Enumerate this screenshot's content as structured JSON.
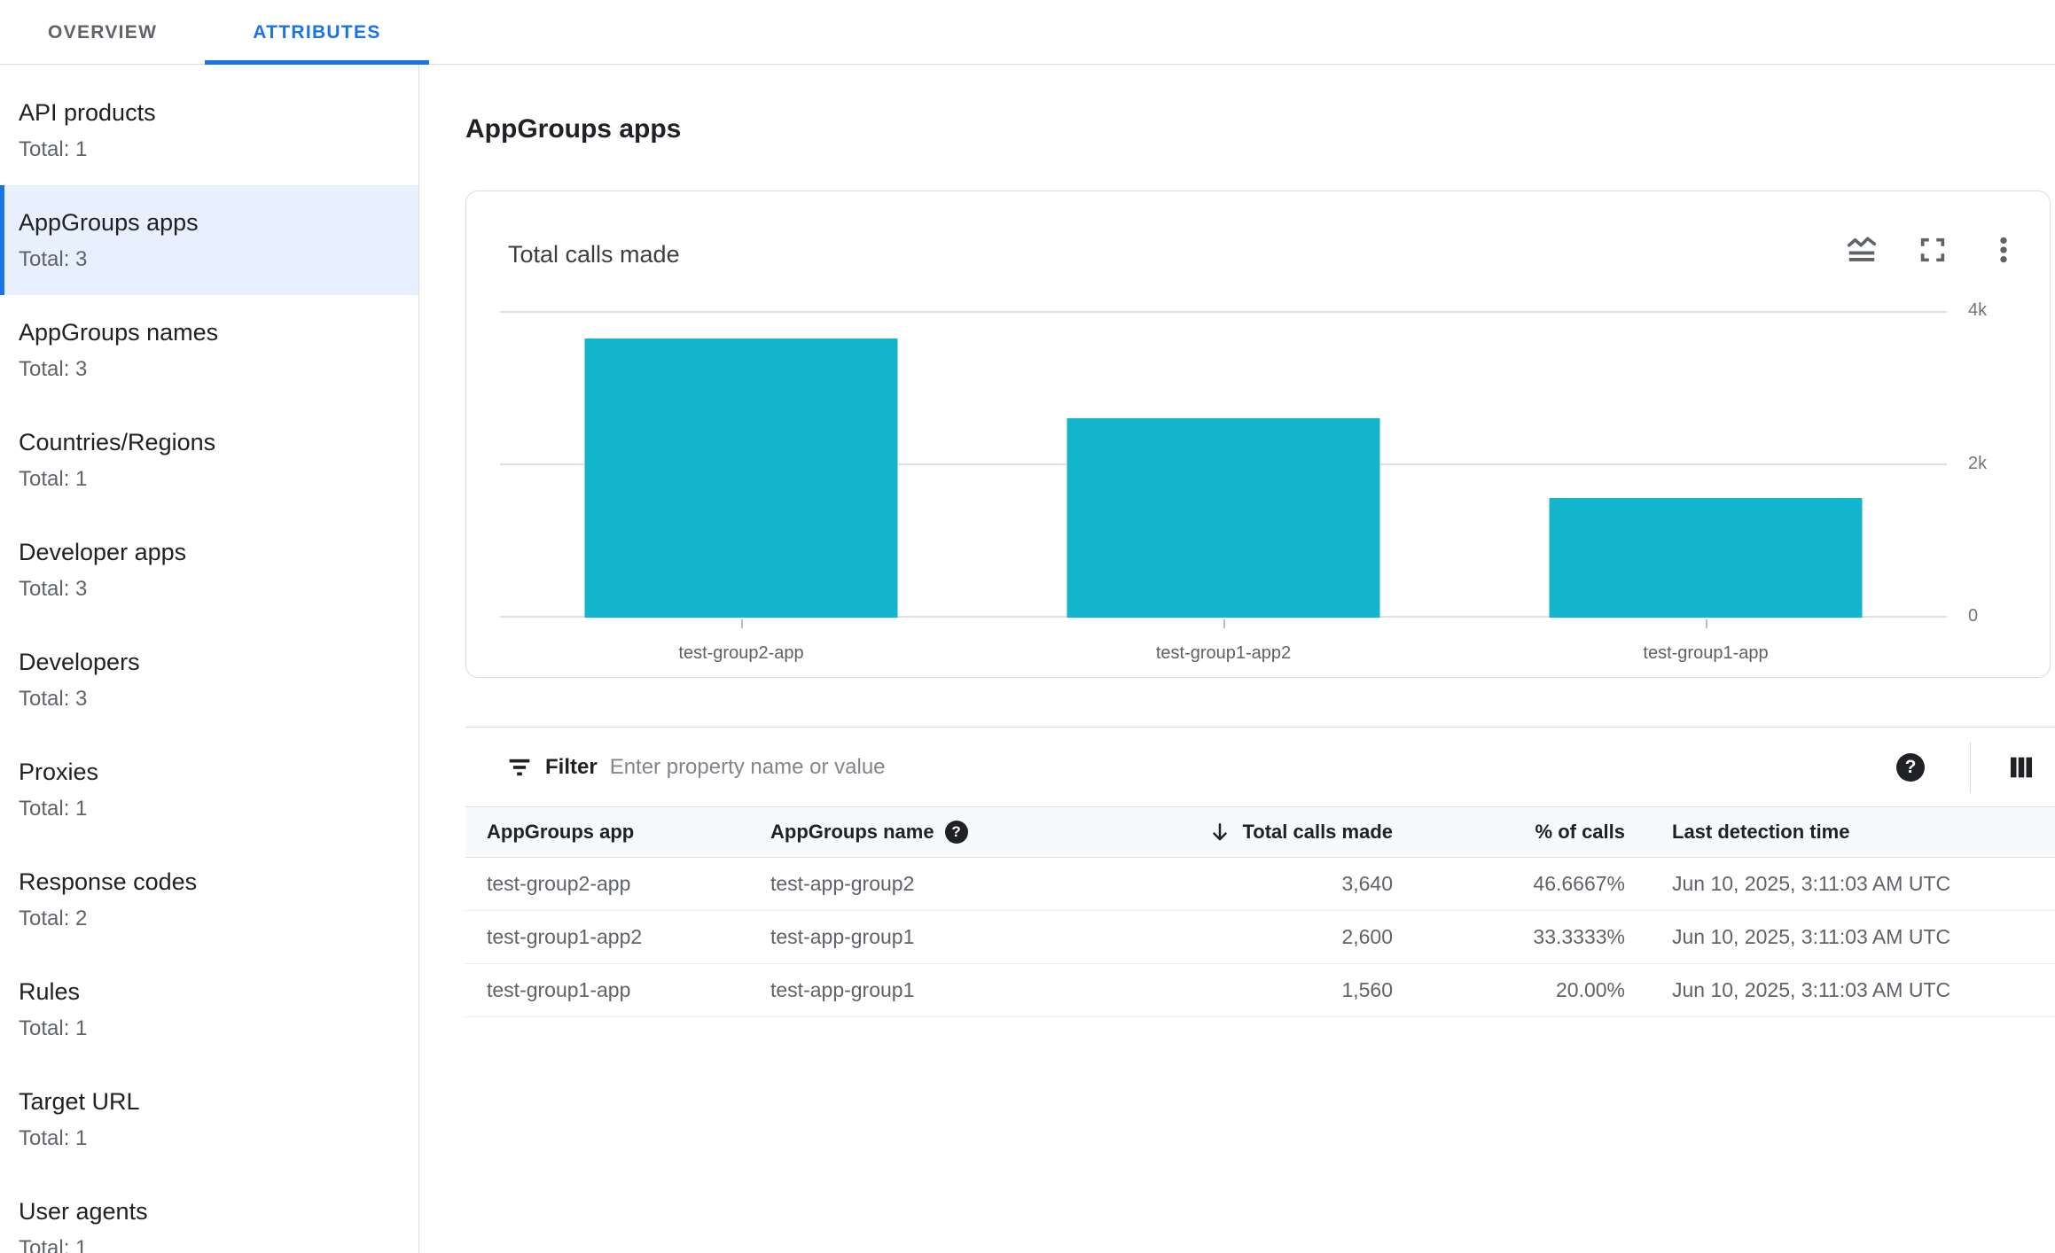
{
  "colors": {
    "accent": "#1a73e8",
    "selected-bg": "#e8f0fe",
    "bar": "#12b5cb",
    "grid": "#e0e0e0"
  },
  "tabs": [
    {
      "label": "OVERVIEW",
      "active": false
    },
    {
      "label": "ATTRIBUTES",
      "active": true
    }
  ],
  "sidebar": {
    "items": [
      {
        "label": "API products",
        "total": "Total: 1",
        "selected": false
      },
      {
        "label": "AppGroups apps",
        "total": "Total: 3",
        "selected": true
      },
      {
        "label": "AppGroups names",
        "total": "Total: 3",
        "selected": false
      },
      {
        "label": "Countries/Regions",
        "total": "Total: 1",
        "selected": false
      },
      {
        "label": "Developer apps",
        "total": "Total: 3",
        "selected": false
      },
      {
        "label": "Developers",
        "total": "Total: 3",
        "selected": false
      },
      {
        "label": "Proxies",
        "total": "Total: 1",
        "selected": false
      },
      {
        "label": "Response codes",
        "total": "Total: 2",
        "selected": false
      },
      {
        "label": "Rules",
        "total": "Total: 1",
        "selected": false
      },
      {
        "label": "Target URL",
        "total": "Total: 1",
        "selected": false
      },
      {
        "label": "User agents",
        "total": "Total: 1",
        "selected": false
      }
    ]
  },
  "page": {
    "title": "AppGroups apps"
  },
  "chart_card": {
    "title": "Total calls made",
    "icons": [
      "area-chart-icon",
      "fullscreen-icon",
      "more-vert-icon"
    ]
  },
  "chart_data": {
    "type": "bar",
    "title": "Total calls made",
    "categories": [
      "test-group2-app",
      "test-group1-app2",
      "test-group1-app"
    ],
    "values": [
      3640,
      2600,
      1560
    ],
    "xlabel": "",
    "ylabel": "",
    "ylim": [
      0,
      4000
    ],
    "yticks": [
      {
        "value": 4000,
        "label": "4k"
      },
      {
        "value": 2000,
        "label": "2k"
      },
      {
        "value": 0,
        "label": "0"
      }
    ],
    "bar_color": "#12b5cb",
    "grid": true,
    "legend_position": "none",
    "ytick_side": "right"
  },
  "filter": {
    "label": "Filter",
    "placeholder": "Enter property name or value"
  },
  "table": {
    "columns": [
      {
        "label": "AppGroups app",
        "align": "left"
      },
      {
        "label": "AppGroups name",
        "align": "left",
        "help": true
      },
      {
        "label": "Total calls made",
        "align": "right",
        "sorted": "desc"
      },
      {
        "label": "% of calls",
        "align": "right"
      },
      {
        "label": "Last detection time",
        "align": "left"
      }
    ],
    "rows": [
      [
        "test-group2-app",
        "test-app-group2",
        "3,640",
        "46.6667%",
        "Jun 10, 2025, 3:11:03 AM UTC"
      ],
      [
        "test-group1-app2",
        "test-app-group1",
        "2,600",
        "33.3333%",
        "Jun 10, 2025, 3:11:03 AM UTC"
      ],
      [
        "test-group1-app",
        "test-app-group1",
        "1,560",
        "20.00%",
        "Jun 10, 2025, 3:11:03 AM UTC"
      ]
    ]
  }
}
